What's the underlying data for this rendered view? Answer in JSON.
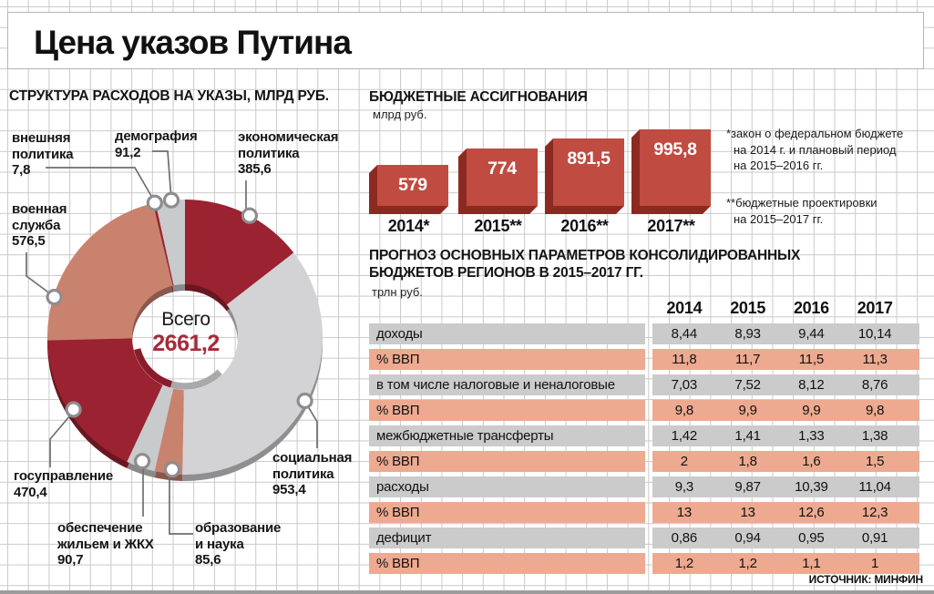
{
  "title": "Цена указов Путина",
  "source": "ИСТОЧНИК: МИНФИН",
  "chart_data": [
    {
      "type": "pie",
      "title": "СТРУКТУРА РАСХОДОВ НА УКАЗЫ, МЛРД РУБ.",
      "unit": "млрд руб.",
      "center_label": "Всего",
      "center_value_display": "2661,2",
      "total": 2661.2,
      "center_value_color": "#a8293a",
      "slices": [
        {
          "id": "ekonomicheskaya-politika",
          "label_lines": [
            "экономическая",
            "политика"
          ],
          "value": 385.6,
          "value_display": "385,6",
          "color": "#9b2230"
        },
        {
          "id": "sotsialnaya-politika",
          "label_lines": [
            "социальная",
            "политика"
          ],
          "value": 953.4,
          "value_display": "953,4",
          "color": "#d3d3d5"
        },
        {
          "id": "obrazovanie-i-nauka",
          "label_lines": [
            "образование",
            "и наука"
          ],
          "value": 85.6,
          "value_display": "85,6",
          "color": "#c9826e"
        },
        {
          "id": "obespechenie-zhilyom-zhkh",
          "label_lines": [
            "обеспечение",
            "жильем и ЖКХ"
          ],
          "value": 90.7,
          "value_display": "90,7",
          "color": "#c9cacc"
        },
        {
          "id": "gosupravlenie",
          "label_lines": [
            "госуправление"
          ],
          "value": 470.4,
          "value_display": "470,4",
          "color": "#9b2230"
        },
        {
          "id": "voennaya-sluzhba",
          "label_lines": [
            "военная",
            "служба"
          ],
          "value": 576.5,
          "value_display": "576,5",
          "color": "#c9826e"
        },
        {
          "id": "vneshnyaya-politika",
          "label_lines": [
            "внешняя",
            "политика"
          ],
          "value": 7.8,
          "value_display": "7,8",
          "color": "#9b2230"
        },
        {
          "id": "demografiya",
          "label_lines": [
            "демография"
          ],
          "value": 91.2,
          "value_display": "91,2",
          "color": "#c9cacc"
        }
      ]
    },
    {
      "type": "bar",
      "title": "БЮДЖЕТНЫЕ АССИГНОВАНИЯ",
      "unit": "млрд руб.",
      "categories": [
        "2014*",
        "2015**",
        "2016**",
        "2017**"
      ],
      "values": [
        579,
        774,
        891.5,
        995.8
      ],
      "value_labels": [
        "579",
        "774",
        "891,5",
        "995,8"
      ],
      "bar_color": "#c04b41",
      "bar_side_color": "#8c2a22",
      "footnotes": [
        [
          "*закон о федеральном бюджете",
          "на 2014 г. и плановый период",
          "на 2015–2016 гг."
        ],
        [
          "**бюджетные проектировки",
          "на 2015–2017 гг."
        ]
      ]
    },
    {
      "type": "table",
      "title_lines": [
        "ПРОГНОЗ ОСНОВНЫХ ПАРАМЕТРОВ КОНСОЛИДИРОВАННЫХ",
        "БЮДЖЕТОВ РЕГИОНОВ В 2015–2017 ГГ."
      ],
      "unit": "трлн руб.",
      "columns": [
        "2014",
        "2015",
        "2016",
        "2017"
      ],
      "row_colors": {
        "gray": "#cbcbcb",
        "salmon": "#edaa90"
      },
      "rows": [
        {
          "label": "доходы",
          "values": [
            "8,44",
            "8,93",
            "9,44",
            "10,14"
          ],
          "tone": "gray"
        },
        {
          "label": "% ВВП",
          "values": [
            "11,8",
            "11,7",
            "11,5",
            "11,3"
          ],
          "tone": "salmon"
        },
        {
          "label": "в том числе налоговые и неналоговые",
          "values": [
            "7,03",
            "7,52",
            "8,12",
            "8,76"
          ],
          "tone": "gray"
        },
        {
          "label": "% ВВП",
          "values": [
            "9,8",
            "9,9",
            "9,9",
            "9,8"
          ],
          "tone": "salmon"
        },
        {
          "label": "межбюджетные трансферты",
          "values": [
            "1,42",
            "1,41",
            "1,33",
            "1,38"
          ],
          "tone": "gray"
        },
        {
          "label": "% ВВП",
          "values": [
            "2",
            "1,8",
            "1,6",
            "1,5"
          ],
          "tone": "salmon"
        },
        {
          "label": "расходы",
          "values": [
            "9,3",
            "9,87",
            "10,39",
            "11,04"
          ],
          "tone": "gray"
        },
        {
          "label": "% ВВП",
          "values": [
            "13",
            "13",
            "12,6",
            "12,3"
          ],
          "tone": "salmon"
        },
        {
          "label": "дефицит",
          "values": [
            "0,86",
            "0,94",
            "0,95",
            "0,91"
          ],
          "tone": "gray"
        },
        {
          "label": "% ВВП",
          "values": [
            "1,2",
            "1,2",
            "1,1",
            "1"
          ],
          "tone": "salmon"
        }
      ]
    }
  ]
}
